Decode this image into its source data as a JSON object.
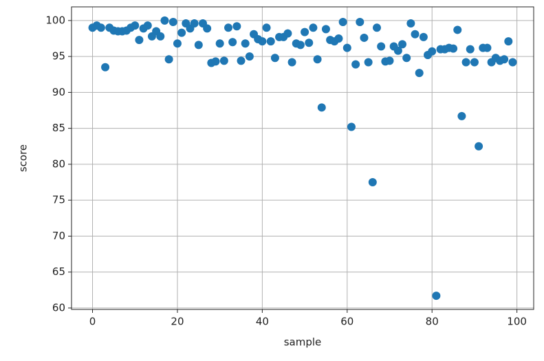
{
  "chart_data": {
    "type": "scatter",
    "xlabel": "sample",
    "ylabel": "score",
    "x": [
      0,
      1,
      2,
      3,
      4,
      5,
      6,
      7,
      8,
      9,
      10,
      11,
      12,
      13,
      14,
      15,
      16,
      17,
      18,
      19,
      20,
      21,
      22,
      23,
      24,
      25,
      26,
      27,
      28,
      29,
      30,
      31,
      32,
      33,
      34,
      35,
      36,
      37,
      38,
      39,
      40,
      41,
      42,
      43,
      44,
      45,
      46,
      47,
      48,
      49,
      50,
      51,
      52,
      53,
      54,
      55,
      56,
      57,
      58,
      59,
      60,
      61,
      62,
      63,
      64,
      65,
      66,
      67,
      68,
      69,
      70,
      71,
      72,
      73,
      74,
      75,
      76,
      77,
      78,
      79,
      80,
      81,
      82,
      83,
      84,
      85,
      86,
      87,
      88,
      89,
      90,
      91,
      92,
      93,
      94,
      95,
      96,
      97,
      98,
      99
    ],
    "values": [
      99,
      99.3,
      99,
      93.5,
      99,
      98.6,
      98.5,
      98.5,
      98.6,
      99,
      99.3,
      97.3,
      98.9,
      99.3,
      97.8,
      98.5,
      97.8,
      100,
      94.6,
      99.8,
      96.8,
      98.3,
      99.6,
      98.9,
      99.6,
      96.6,
      99.6,
      98.9,
      94.1,
      94.3,
      96.8,
      94.4,
      99,
      97,
      99.2,
      94.4,
      96.8,
      95,
      98.1,
      97.4,
      97.1,
      99,
      97.1,
      94.8,
      97.7,
      97.7,
      98.2,
      94.2,
      96.8,
      96.6,
      98.4,
      96.9,
      99,
      94.6,
      87.9,
      98.8,
      97.3,
      97.1,
      97.5,
      99.8,
      96.2,
      85.2,
      93.9,
      99.8,
      97.6,
      94.2,
      77.5,
      99,
      96.4,
      94.3,
      94.4,
      96.4,
      95.8,
      96.7,
      94.8,
      99.6,
      98.1,
      92.7,
      97.7,
      95.2,
      95.7,
      61.7,
      96,
      96,
      96.2,
      96.1,
      98.7,
      86.7,
      94.2,
      96,
      94.2,
      82.5,
      96.2,
      96.2,
      94.2,
      94.8,
      94.4,
      94.6,
      97.1,
      94.2
    ],
    "color": "#1f77b4",
    "xlim": [
      -4.95,
      103.95
    ],
    "xticks": [
      0,
      20,
      40,
      60,
      80,
      100
    ],
    "ylim": [
      59.8,
      101.9
    ],
    "yticks": [
      60,
      65,
      70,
      75,
      80,
      85,
      90,
      95,
      100
    ],
    "grid": true
  }
}
